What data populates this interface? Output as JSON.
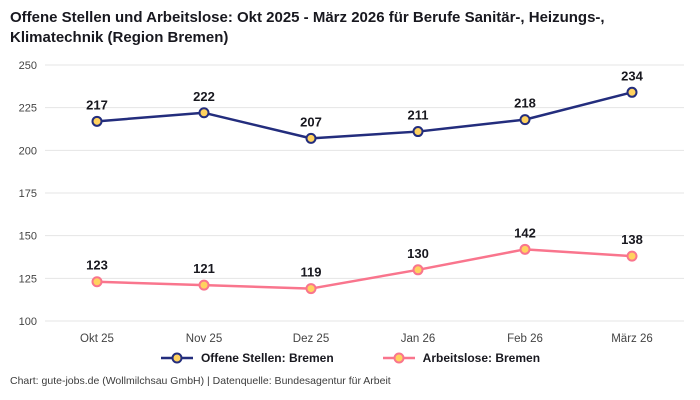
{
  "header": {
    "title": "Offene Stellen und Arbeitslose: Okt 2025 - März 2026 für Berufe Sanitär-, Heizungs-, Klimatechnik (Region Bremen)"
  },
  "chart_data": {
    "type": "line",
    "categories": [
      "Okt 25",
      "Nov 25",
      "Dez 25",
      "Jan 26",
      "Feb 26",
      "März 26"
    ],
    "series": [
      {
        "name": "Offene Stellen: Bremen",
        "values": [
          217,
          222,
          207,
          211,
          218,
          234
        ],
        "color": "#232d7d"
      },
      {
        "name": "Arbeitslose: Bremen",
        "values": [
          123,
          121,
          119,
          130,
          142,
          138
        ],
        "color": "#f9758d"
      }
    ],
    "marker_fill": "#ffd25f",
    "ylim": [
      100,
      250
    ],
    "yticks": [
      100,
      125,
      150,
      175,
      200,
      225,
      250
    ],
    "grid": true,
    "data_labels": true,
    "legend_position": "bottom",
    "title": "Offene Stellen und Arbeitslose: Okt 2025 - März 2026 für Berufe Sanitär-, Heizungs-, Klimatechnik (Region Bremen)",
    "xlabel": "",
    "ylabel": ""
  },
  "footer": {
    "credit": "Chart: gute-jobs.de (Wollmilchsau GmbH) | Datenquelle: Bundesagentur für Arbeit"
  },
  "colors": {
    "grid": "#e4e4e4",
    "text": "#18181f",
    "tick_text": "#444444"
  }
}
